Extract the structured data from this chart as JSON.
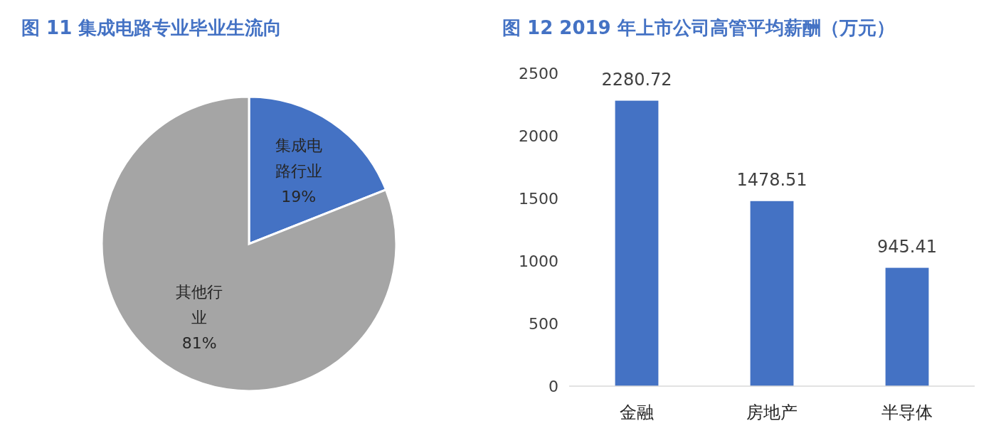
{
  "chart_data": [
    {
      "type": "pie",
      "title": "图 11 集成电路专业毕业生流向",
      "categories": [
        "集成电路行业",
        "其他行业"
      ],
      "values": [
        19,
        81
      ],
      "value_labels": [
        "19%",
        "81%"
      ],
      "colors": [
        "#4472c4",
        "#a5a5a5"
      ]
    },
    {
      "type": "bar",
      "title": "图 12 2019 年上市公司高管平均薪酬（万元）",
      "categories": [
        "金融",
        "房地产",
        "半导体"
      ],
      "values": [
        2280.72,
        1478.51,
        945.41
      ],
      "color": "#4472c4",
      "ylim": [
        0,
        2500
      ],
      "yticks": [
        0,
        500,
        1000,
        1500,
        2000,
        2500
      ],
      "data_labels": true,
      "grid": false
    }
  ]
}
